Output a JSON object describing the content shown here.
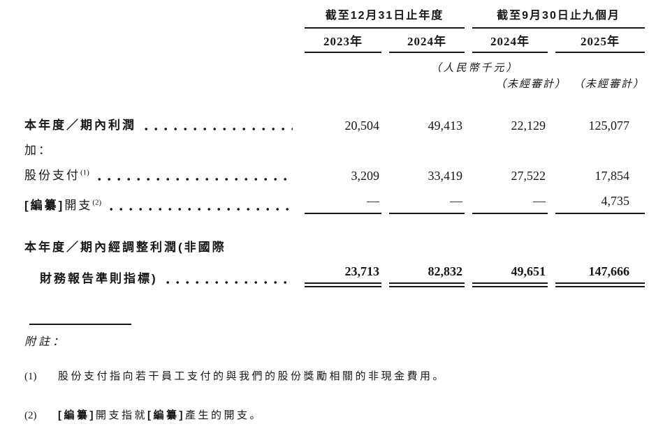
{
  "page": {
    "background": "#ffffff",
    "text_color": "#161616"
  },
  "table": {
    "header": {
      "groups": [
        {
          "title": "截至12月31日止年度",
          "years": [
            "2023年",
            "2024年"
          ]
        },
        {
          "title": "截至9月30日止九個月",
          "years": [
            "2024年",
            "2025年"
          ]
        }
      ],
      "unit_note": "（人民幣千元）",
      "unaudited_col3": "（未經審計）",
      "unaudited_col4": "（未經審計）"
    },
    "rows": {
      "profit": {
        "label": "本年度／期內利潤",
        "values": [
          "20,504",
          "49,413",
          "22,129",
          "125,077"
        ]
      },
      "add": {
        "label": "加："
      },
      "share_based_payment": {
        "label": "股份支付",
        "footnote_ref": "(1)",
        "values": [
          "3,209",
          "33,419",
          "27,522",
          "17,854"
        ]
      },
      "redacted_expense": {
        "label_redacted": "[編纂]",
        "label": "開支",
        "footnote_ref": "(2)",
        "values": [
          "—",
          "—",
          "—",
          "4,735"
        ]
      },
      "adjusted_profit": {
        "label_line1": "本年度／期內經調整利潤(非國際",
        "label_line2": "財務報告準則指標)",
        "values": [
          "23,713",
          "82,832",
          "49,651",
          "147,666"
        ]
      }
    }
  },
  "footnotes": {
    "heading": "附註：",
    "note1": {
      "marker": "(1)",
      "text": "股份支付指向若干員工支付的與我們的股份獎勵相關的非現金費用。"
    },
    "note2": {
      "marker": "(2)",
      "part1": "[編纂]",
      "part2": "開支指就",
      "part3": "[編纂]",
      "part4": "產生的開支。"
    }
  }
}
